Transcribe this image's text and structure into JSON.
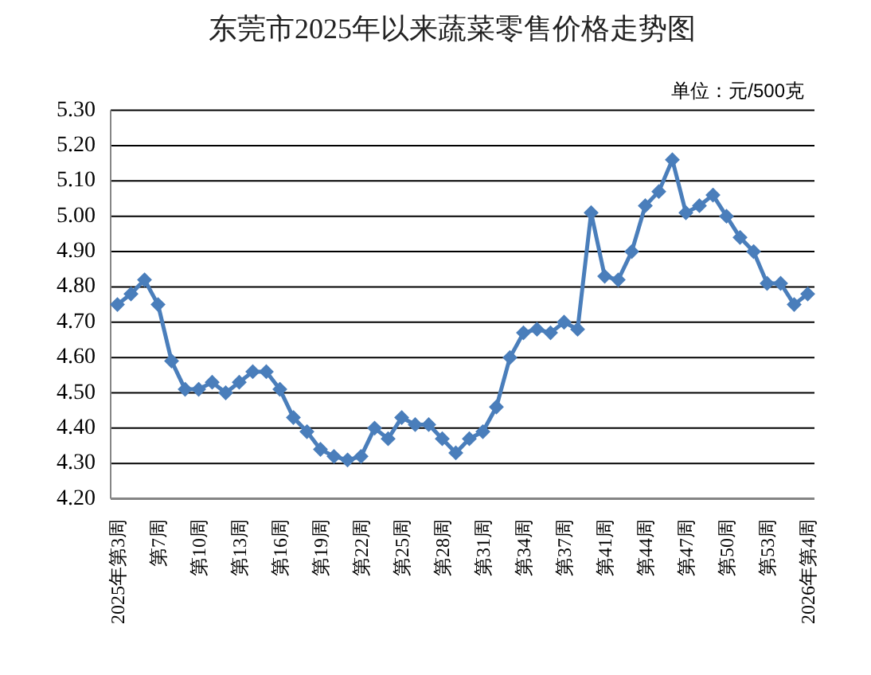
{
  "chart_data": {
    "type": "line",
    "title": "东莞市2025年以来蔬菜零售价格走势图",
    "annotations": [
      "单位：元/500克"
    ],
    "categories": [
      "2025年第3周",
      null,
      null,
      "第7周",
      null,
      null,
      "第10周",
      null,
      null,
      "第13周",
      null,
      null,
      "第16周",
      null,
      null,
      "第19周",
      null,
      null,
      "第22周",
      null,
      null,
      "第25周",
      null,
      null,
      "第28周",
      null,
      null,
      "第31周",
      null,
      null,
      "第34周",
      null,
      null,
      "第37周",
      null,
      null,
      "第41周",
      null,
      null,
      "第44周",
      null,
      null,
      "第47周",
      null,
      null,
      "第50周",
      null,
      null,
      "第53周",
      null,
      null,
      "2026年第4周"
    ],
    "series": [
      {
        "color": "#4a7ebb",
        "values": [
          4.75,
          4.78,
          4.82,
          4.75,
          4.59,
          4.51,
          4.51,
          4.53,
          4.5,
          4.53,
          4.56,
          4.56,
          4.51,
          4.43,
          4.39,
          4.34,
          4.32,
          4.31,
          4.32,
          4.4,
          4.37,
          4.43,
          4.41,
          4.41,
          4.37,
          4.33,
          4.37,
          4.39,
          4.46,
          4.6,
          4.67,
          4.68,
          4.67,
          4.7,
          4.68,
          5.01,
          4.83,
          4.82,
          4.9,
          5.03,
          5.07,
          5.16,
          5.01,
          5.03,
          5.06,
          5.0,
          4.94,
          4.9,
          4.81,
          4.81,
          4.75,
          4.78
        ]
      }
    ],
    "ylim": [
      4.2,
      5.3
    ],
    "yticks": [
      {
        "value": 4.2,
        "label": "4.20"
      },
      {
        "value": 4.3,
        "label": "4.30"
      },
      {
        "value": 4.4,
        "label": "4.40"
      },
      {
        "value": 4.5,
        "label": "4.50"
      },
      {
        "value": 4.6,
        "label": "4.60"
      },
      {
        "value": 4.7,
        "label": "4.70"
      },
      {
        "value": 4.8,
        "label": "4.80"
      },
      {
        "value": 4.9,
        "label": "4.90"
      },
      {
        "value": 5.0,
        "label": "5.00"
      },
      {
        "value": 5.1,
        "label": "5.10"
      },
      {
        "value": 5.2,
        "label": "5.20"
      },
      {
        "value": 5.3,
        "label": "5.30"
      }
    ],
    "grid": "y",
    "marker": "diamond",
    "line_style": "solid"
  }
}
